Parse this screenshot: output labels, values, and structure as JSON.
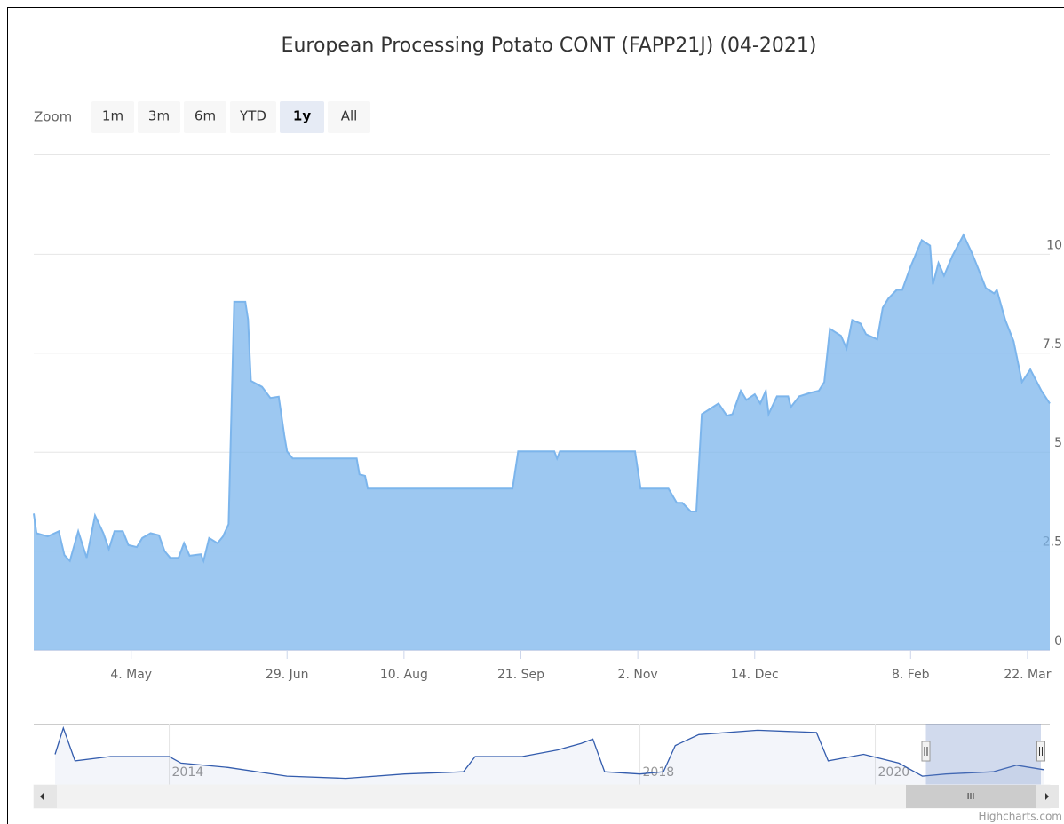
{
  "chart_data": [
    {
      "type": "area",
      "title": "European Processing Potato CONT (FAPP21J) (04-2021)",
      "xlim": [
        0,
        365
      ],
      "xticks": [
        {
          "value": 35,
          "label": "4. May"
        },
        {
          "value": 91,
          "label": "29. Jun"
        },
        {
          "value": 133,
          "label": "10. Aug"
        },
        {
          "value": 175,
          "label": "21. Sep"
        },
        {
          "value": 217,
          "label": "2. Nov"
        },
        {
          "value": 259,
          "label": "14. Dec"
        },
        {
          "value": 315,
          "label": "8. Feb"
        },
        {
          "value": 357,
          "label": "22. Mar"
        }
      ],
      "ylim": [
        0,
        12.5
      ],
      "yticks": [
        0,
        2.5,
        5,
        7.5,
        10
      ],
      "grid": true,
      "series": [
        {
          "color": "#7cb5ec",
          "x": [
            0,
            1,
            5,
            9,
            11,
            13,
            16,
            19,
            22,
            25,
            27,
            29,
            32,
            34,
            37,
            39,
            42,
            45,
            47,
            49,
            52,
            54,
            56,
            60,
            61,
            63,
            66,
            68,
            70,
            72,
            76,
            77,
            78,
            82,
            85,
            88,
            90,
            91,
            93,
            116,
            117,
            119,
            120,
            172,
            174,
            187,
            188,
            189,
            216,
            218,
            228,
            231,
            233,
            236,
            238,
            240,
            244,
            246,
            249,
            251,
            254,
            256,
            259,
            261,
            263,
            264,
            267,
            271,
            272,
            275,
            279,
            282,
            284,
            286,
            290,
            292,
            294,
            297,
            299,
            303,
            305,
            307,
            310,
            312,
            315,
            319,
            322,
            323,
            325,
            327,
            330,
            334,
            337,
            339,
            342,
            345,
            346,
            349,
            352,
            355,
            358,
            362,
            365
          ],
          "values": [
            3.45,
            2.95,
            2.87,
            3.0,
            2.4,
            2.25,
            3.0,
            2.33,
            3.4,
            2.95,
            2.55,
            3.0,
            3.0,
            2.65,
            2.6,
            2.83,
            2.95,
            2.9,
            2.5,
            2.33,
            2.33,
            2.7,
            2.38,
            2.42,
            2.25,
            2.83,
            2.7,
            2.87,
            3.18,
            8.8,
            8.8,
            8.35,
            6.8,
            6.65,
            6.37,
            6.4,
            5.43,
            5.02,
            4.84,
            4.84,
            4.44,
            4.4,
            4.08,
            4.08,
            5.02,
            5.02,
            4.84,
            5.02,
            5.02,
            4.08,
            4.08,
            3.72,
            3.72,
            3.5,
            3.5,
            5.96,
            6.14,
            6.23,
            5.92,
            5.96,
            6.55,
            6.32,
            6.46,
            6.23,
            6.55,
            5.96,
            6.41,
            6.41,
            6.14,
            6.41,
            6.5,
            6.55,
            6.77,
            8.12,
            7.94,
            7.62,
            8.34,
            8.25,
            7.98,
            7.85,
            8.65,
            8.88,
            9.1,
            9.1,
            9.69,
            10.36,
            10.22,
            9.24,
            9.78,
            9.46,
            9.96,
            10.49,
            10.04,
            9.69,
            9.15,
            9.01,
            9.1,
            8.34,
            7.8,
            6.77,
            7.09,
            6.55,
            6.23
          ]
        }
      ]
    },
    {
      "type": "navigator",
      "xlim": [
        2013.03,
        2021.43
      ],
      "xticks": [
        2014,
        2018,
        2020
      ],
      "ylim": [
        0,
        28
      ],
      "series": [
        {
          "color": "#335cad",
          "x": [
            2013.03,
            2013.1,
            2013.2,
            2013.5,
            2014.0,
            2014.1,
            2014.5,
            2015.0,
            2015.5,
            2016.0,
            2016.5,
            2016.6,
            2017.0,
            2017.3,
            2017.5,
            2017.6,
            2017.7,
            2018.0,
            2018.2,
            2018.3,
            2018.5,
            2019.0,
            2019.5,
            2019.6,
            2019.9,
            2020.2,
            2020.4,
            2020.6,
            2021.0,
            2021.2,
            2021.43
          ],
          "values": [
            14,
            26,
            11,
            13,
            13,
            10,
            8,
            4,
            3,
            5,
            6,
            13,
            13,
            16,
            19,
            21,
            6,
            5,
            6,
            18,
            23,
            25,
            24,
            11,
            14,
            10,
            4,
            5,
            6,
            9,
            7
          ]
        }
      ],
      "selection": [
        2020.43,
        2021.43
      ]
    }
  ],
  "range_selector": {
    "label": "Zoom",
    "buttons": [
      "1m",
      "3m",
      "6m",
      "YTD",
      "1y",
      "All"
    ],
    "selected": 4
  },
  "credits": "Highcharts.com"
}
